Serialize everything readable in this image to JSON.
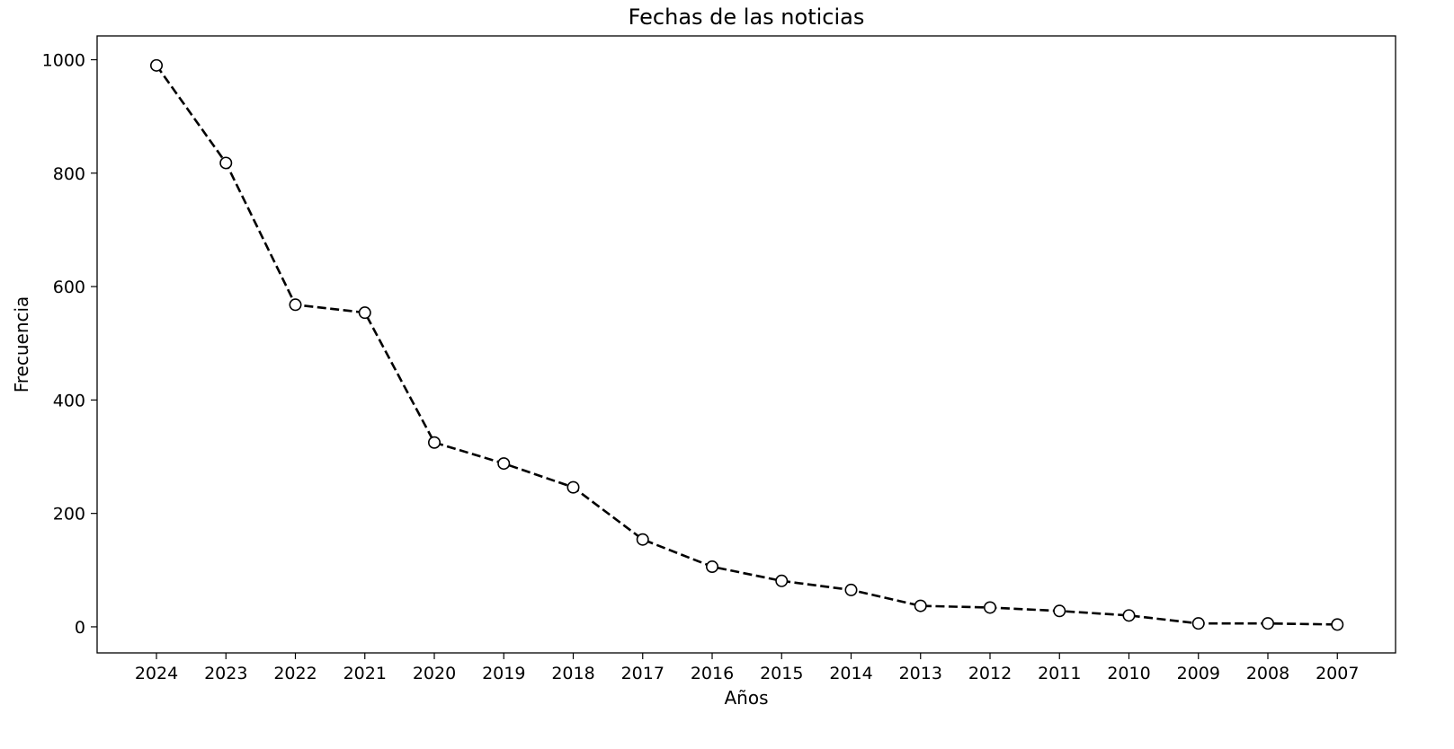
{
  "chart_data": {
    "type": "line",
    "title": "Fechas de las noticias",
    "xlabel": "Años",
    "ylabel": "Frecuencia",
    "categories": [
      "2024",
      "2023",
      "2022",
      "2021",
      "2020",
      "2019",
      "2018",
      "2017",
      "2016",
      "2015",
      "2014",
      "2013",
      "2012",
      "2011",
      "2010",
      "2009",
      "2008",
      "2007"
    ],
    "series": [
      {
        "values": [
          990,
          818,
          568,
          554,
          325,
          288,
          246,
          154,
          106,
          81,
          65,
          37,
          34,
          28,
          20,
          6,
          6,
          4
        ],
        "line_color": "#000000",
        "line_style": "dashed",
        "marker": "circle",
        "marker_fill": "#ffffff"
      }
    ],
    "ylim": [
      -46,
      1042
    ],
    "yticks": [
      0,
      200,
      400,
      600,
      800,
      1000
    ],
    "grid": false,
    "legend": "none"
  }
}
